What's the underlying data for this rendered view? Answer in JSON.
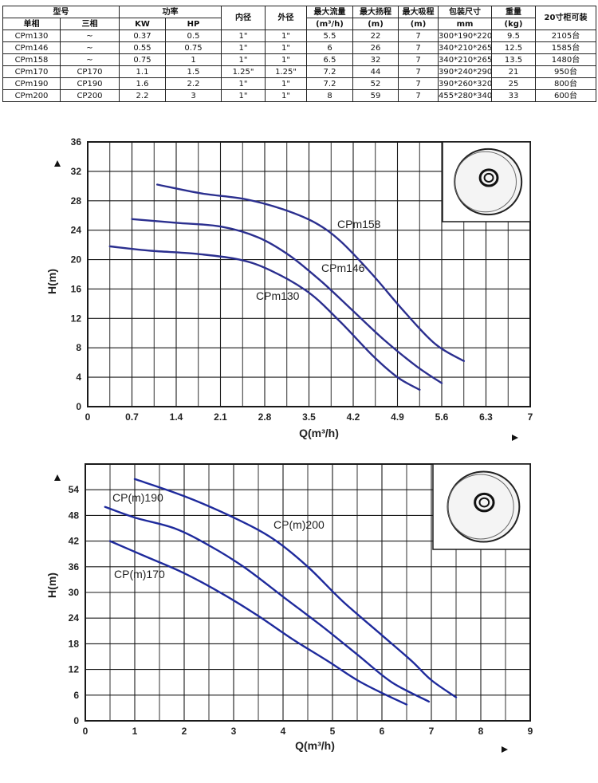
{
  "table": {
    "headers": {
      "model": "型号",
      "single_phase": "单相",
      "three_phase": "三相",
      "power": "功率",
      "kw": "KW",
      "hp": "HP",
      "inner_diameter": "内径",
      "outer_diameter": "外径",
      "max_flow": "最大流量",
      "max_flow_unit": "(m³/h)",
      "max_head": "最大扬程",
      "max_head_unit": "(m)",
      "max_suction": "最大吸程",
      "max_suction_unit": "(m)",
      "package_size": "包装尺寸",
      "package_size_unit": "mm",
      "weight": "重量",
      "weight_unit": "(kg)",
      "container": "20寸柜可装"
    },
    "rows": [
      {
        "single": "CPm130",
        "three": "~",
        "kw": "0.37",
        "hp": "0.5",
        "inner": "1\"",
        "outer": "1\"",
        "flow": "5.5",
        "head": "22",
        "suction": "7",
        "pack": "300*190*220",
        "weight": "9.5",
        "container": "2105台"
      },
      {
        "single": "CPm146",
        "three": "~",
        "kw": "0.55",
        "hp": "0.75",
        "inner": "1\"",
        "outer": "1\"",
        "flow": "6",
        "head": "26",
        "suction": "7",
        "pack": "340*210*265",
        "weight": "12.5",
        "container": "1585台"
      },
      {
        "single": "CPm158",
        "three": "~",
        "kw": "0.75",
        "hp": "1",
        "inner": "1\"",
        "outer": "1\"",
        "flow": "6.5",
        "head": "32",
        "suction": "7",
        "pack": "340*210*265",
        "weight": "13.5",
        "container": "1480台"
      },
      {
        "single": "CPm170",
        "three": "CP170",
        "kw": "1.1",
        "hp": "1.5",
        "inner": "1.25\"",
        "outer": "1.25\"",
        "flow": "7.2",
        "head": "44",
        "suction": "7",
        "pack": "390*240*290",
        "weight": "21",
        "container": "950台"
      },
      {
        "single": "CPm190",
        "three": "CP190",
        "kw": "1.6",
        "hp": "2.2",
        "inner": "1\"",
        "outer": "1\"",
        "flow": "7.2",
        "head": "52",
        "suction": "7",
        "pack": "390*260*320",
        "weight": "25",
        "container": "800台"
      },
      {
        "single": "CPm200",
        "three": "CP200",
        "kw": "2.2",
        "hp": "3",
        "inner": "1\"",
        "outer": "1\"",
        "flow": "8",
        "head": "59",
        "suction": "7",
        "pack": "455*280*340",
        "weight": "33",
        "container": "600台"
      }
    ]
  },
  "chart_data": [
    {
      "type": "line",
      "xlabel": "Q(m³/h)",
      "ylabel": "H(m)",
      "xlim": [
        0,
        7
      ],
      "ylim": [
        0,
        36
      ],
      "x_ticks": [
        "0",
        "0.7",
        "1.4",
        "2.1",
        "2.8",
        "3.5",
        "4.2",
        "4.9",
        "5.6",
        "6.3",
        "7"
      ],
      "y_ticks": [
        "0",
        "4",
        "8",
        "12",
        "16",
        "20",
        "24",
        "28",
        "32",
        "36"
      ],
      "grid": true,
      "line_color": "#2b2f8f",
      "series": [
        {
          "name": "CPm158",
          "x": [
            1.1,
            1.8,
            2.5,
            3.1,
            3.6,
            4.0,
            4.5,
            5.0,
            5.5,
            5.95
          ],
          "y": [
            30.2,
            29.0,
            28.2,
            26.8,
            25.0,
            22.5,
            18.0,
            13.0,
            8.5,
            6.2
          ]
        },
        {
          "name": "CPm146",
          "x": [
            0.7,
            1.4,
            2.1,
            2.7,
            3.2,
            3.7,
            4.2,
            4.7,
            5.2,
            5.6
          ],
          "y": [
            25.5,
            25.0,
            24.5,
            23.0,
            20.5,
            17.0,
            13.0,
            9.0,
            5.5,
            3.2
          ]
        },
        {
          "name": "CPm130",
          "x": [
            0.35,
            1.0,
            1.7,
            2.4,
            2.9,
            3.5,
            4.0,
            4.5,
            4.9,
            5.25
          ],
          "y": [
            21.8,
            21.2,
            20.8,
            20.0,
            18.5,
            15.5,
            11.5,
            7.0,
            4.0,
            2.3
          ]
        }
      ],
      "labels": [
        "CPm158",
        "CPm146",
        "CPm130"
      ]
    },
    {
      "type": "line",
      "xlabel": "Q(m³/h)",
      "ylabel": "H(m)",
      "xlim": [
        0,
        9
      ],
      "ylim": [
        0,
        60
      ],
      "x_ticks": [
        "0",
        "1",
        "2",
        "3",
        "4",
        "5",
        "6",
        "7",
        "8",
        "9"
      ],
      "y_ticks": [
        "0",
        "6",
        "12",
        "18",
        "24",
        "30",
        "36",
        "42",
        "48",
        "54"
      ],
      "grid": true,
      "line_color": "#1e2a9c",
      "series": [
        {
          "name": "CP(m)200",
          "x": [
            1.0,
            2.0,
            3.0,
            3.8,
            4.5,
            5.2,
            6.0,
            6.6,
            7.0,
            7.5
          ],
          "y": [
            56.5,
            52.5,
            47.5,
            42.5,
            36.0,
            28.0,
            20.0,
            14.0,
            9.5,
            5.5
          ]
        },
        {
          "name": "CP(m)190",
          "x": [
            0.4,
            1.0,
            1.8,
            2.5,
            3.2,
            4.0,
            4.8,
            5.5,
            6.2,
            6.95
          ],
          "y": [
            50.0,
            47.5,
            45.0,
            41.0,
            36.0,
            29.0,
            22.0,
            15.5,
            9.0,
            4.5
          ]
        },
        {
          "name": "CP(m)170",
          "x": [
            0.5,
            1.2,
            2.0,
            2.8,
            3.5,
            4.2,
            4.9,
            5.5,
            6.0,
            6.5
          ],
          "y": [
            42.0,
            38.5,
            34.5,
            29.5,
            24.5,
            19.0,
            14.0,
            9.5,
            6.5,
            3.8
          ]
        }
      ],
      "labels": [
        "CP(m)190",
        "CP(m)200",
        "CP(m)170"
      ]
    }
  ]
}
